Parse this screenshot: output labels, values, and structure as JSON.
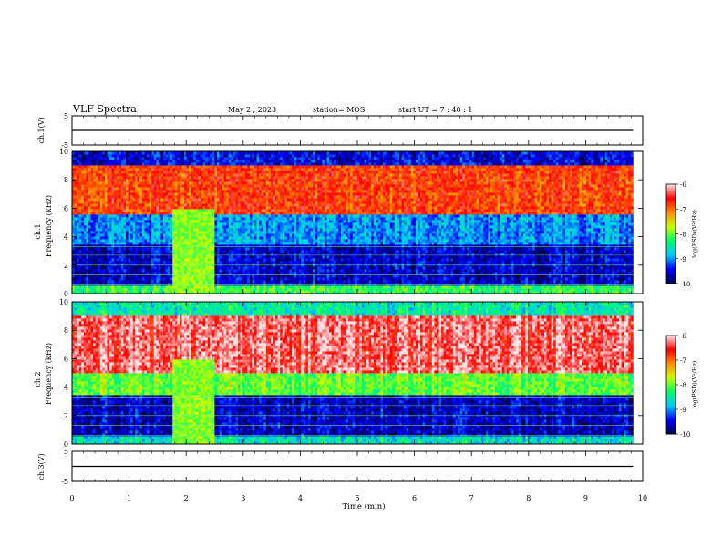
{
  "header": {
    "title": "VLF Spectra",
    "date": "May 2 , 2023",
    "station": "station= MOS",
    "start": "start  UT  =   7 : 40 : 1"
  },
  "chart_data": [
    {
      "type": "line",
      "panel": "ch1-voltage",
      "ylabel": "ch.1(V)",
      "ylim": [
        -5,
        5
      ],
      "y_ticks": [
        "5",
        "-5"
      ],
      "series": [
        {
          "values_description_free": true,
          "x": [
            0,
            9.83
          ],
          "y": [
            0,
            0
          ]
        }
      ]
    },
    {
      "type": "heatmap",
      "panel": "ch1-spectrogram",
      "ylabel": "ch.1\nFrequency (kHz)",
      "ylim": [
        0,
        10
      ],
      "y_ticks": [
        "0",
        "2",
        "4",
        "6",
        "8",
        "10"
      ],
      "colorbar": {
        "label": "log(PSD)(V²/Hz)",
        "range": [
          -10,
          -6
        ],
        "ticks": [
          "-6",
          "-7",
          "-8",
          "-9",
          "-10"
        ]
      },
      "bands_khz": [
        {
          "from": 0.0,
          "to": 0.5,
          "level": -8.2
        },
        {
          "from": 0.5,
          "to": 3.5,
          "level": -9.6
        },
        {
          "from": 3.5,
          "to": 5.5,
          "level": -9.0
        },
        {
          "from": 5.5,
          "to": 9.0,
          "level": -6.8
        },
        {
          "from": 9.0,
          "to": 10.0,
          "level": -9.5
        }
      ],
      "burst_minutes": [
        1.77,
        2.5
      ]
    },
    {
      "type": "heatmap",
      "panel": "ch2-spectrogram",
      "ylabel": "ch.2\nFrequency (kHz)",
      "ylim": [
        0,
        10
      ],
      "y_ticks": [
        "0",
        "2",
        "4",
        "6",
        "8",
        "10"
      ],
      "colorbar": {
        "label": "log(PSD)(V²/Hz)",
        "range": [
          -10,
          -6
        ],
        "ticks": [
          "-6",
          "-7",
          "-8",
          "-9",
          "-10"
        ]
      },
      "bands_khz": [
        {
          "from": 0.0,
          "to": 0.5,
          "level": -8.6
        },
        {
          "from": 0.5,
          "to": 3.5,
          "level": -9.6
        },
        {
          "from": 3.5,
          "to": 5.0,
          "level": -8.0
        },
        {
          "from": 5.0,
          "to": 9.0,
          "level": -6.3
        },
        {
          "from": 9.0,
          "to": 10.0,
          "level": -8.5
        }
      ],
      "burst_minutes": [
        1.77,
        2.5
      ]
    },
    {
      "type": "line",
      "panel": "ch3-voltage",
      "ylabel": "ch.3(V)",
      "ylim": [
        -5,
        5
      ],
      "y_ticks": [
        "5",
        "-5"
      ],
      "xlabel": "Time  (min)",
      "xlim": [
        0,
        10
      ],
      "x_ticks": [
        "0",
        "1",
        "2",
        "3",
        "4",
        "5",
        "6",
        "7",
        "8",
        "9",
        "10"
      ],
      "series": [
        {
          "x": [
            0,
            9.83
          ],
          "y": [
            0,
            0
          ]
        }
      ]
    }
  ],
  "colors": {
    "colormap": [
      "#00004a",
      "#0000ff",
      "#00c8ff",
      "#00ff64",
      "#c8ff00",
      "#ff8c00",
      "#ff0000",
      "#ffe6e6"
    ]
  }
}
